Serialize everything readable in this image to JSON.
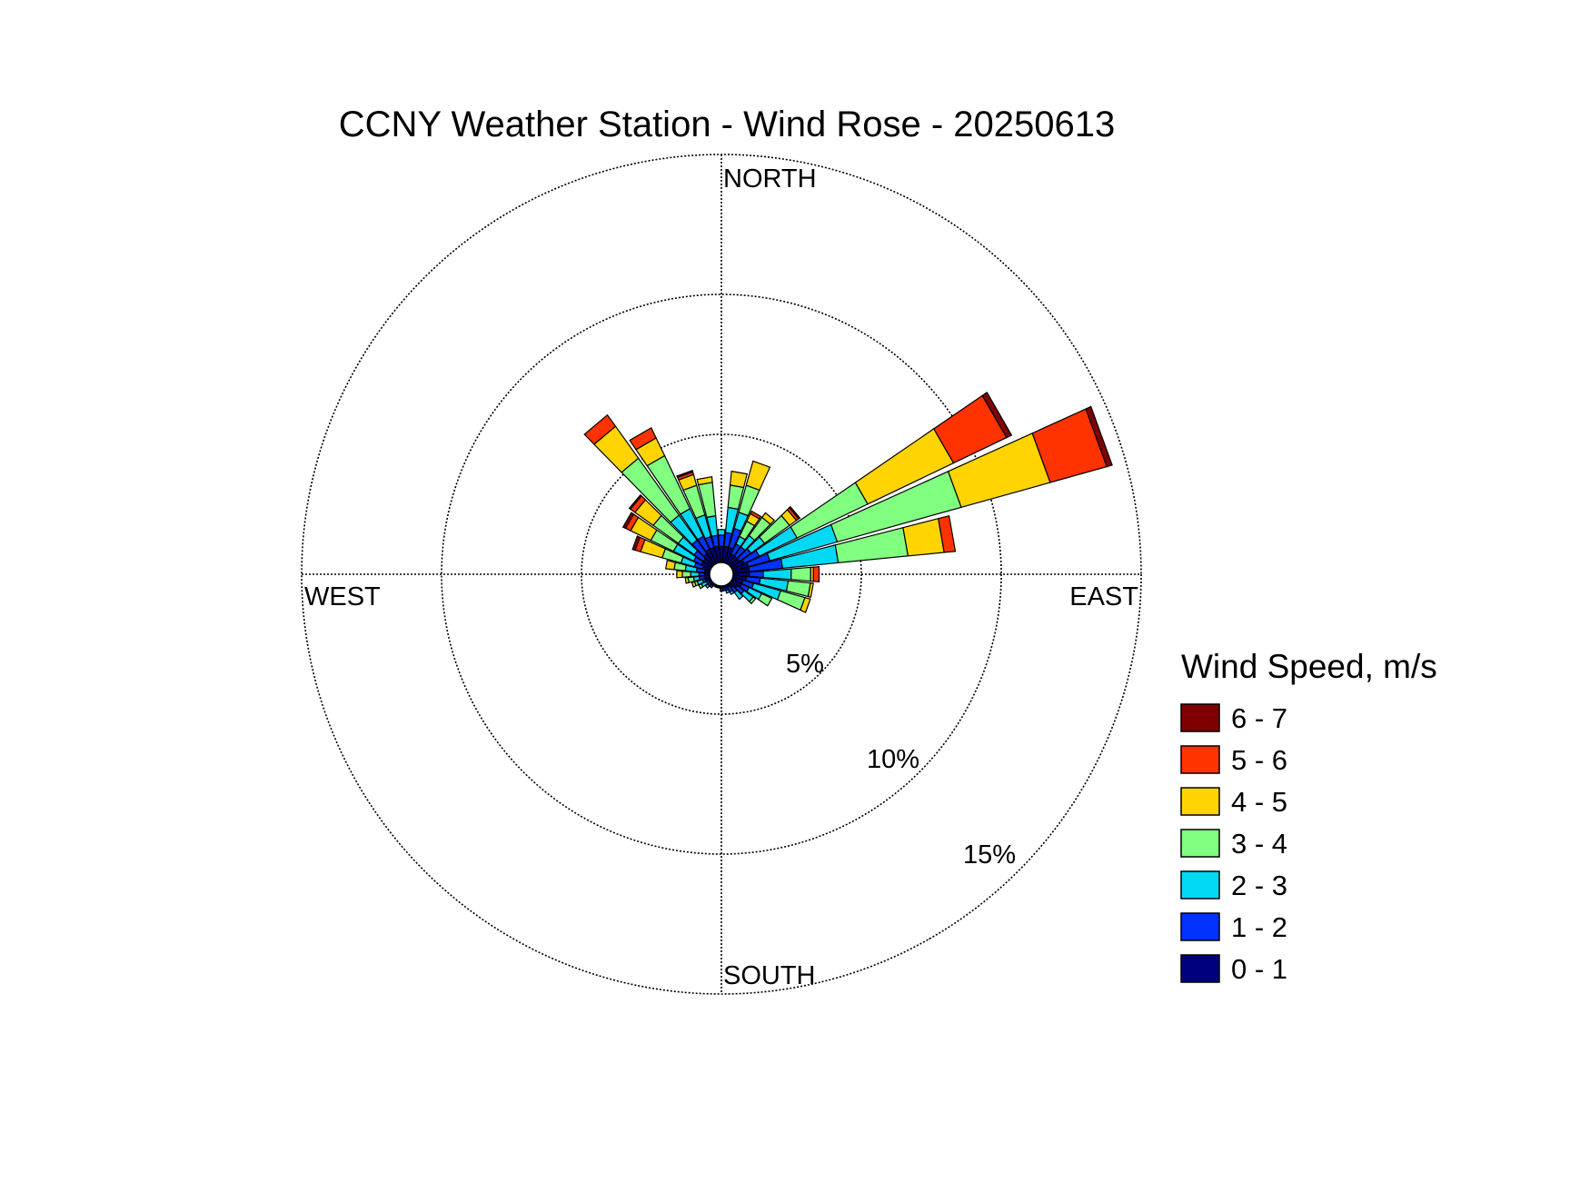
{
  "chart_data": {
    "type": "windrose",
    "title": "CCNY Weather Station - Wind Rose - 20250613",
    "direction_labels": {
      "north": "NORTH",
      "east": "EAST",
      "south": "SOUTH",
      "west": "WEST"
    },
    "radial_unit": "%",
    "radial_max": 15,
    "radial_rings": [
      5,
      10,
      15
    ],
    "ring_labels": [
      "5%",
      "10%",
      "15%"
    ],
    "grid": true,
    "legend": {
      "title": "Wind Speed, m/s",
      "position": "right",
      "bins": [
        {
          "label": "6 - 7",
          "color": "#7f0000"
        },
        {
          "label": "5 - 6",
          "color": "#ff3300"
        },
        {
          "label": "4 - 5",
          "color": "#ffd400"
        },
        {
          "label": "3 - 4",
          "color": "#80ff80"
        },
        {
          "label": "2 - 3",
          "color": "#00d8f4"
        },
        {
          "label": "1 - 2",
          "color": "#0033ff"
        },
        {
          "label": "0 - 1",
          "color": "#00007f"
        }
      ]
    },
    "speed_bins": [
      "0 - 1",
      "1 - 2",
      "2 - 3",
      "3 - 4",
      "4 - 5",
      "5 - 6",
      "6 - 7"
    ],
    "series": [
      {
        "direction": 0,
        "cumulative": [
          1.0,
          1.4,
          1.6,
          1.6,
          1.6,
          1.6,
          1.6
        ]
      },
      {
        "direction": 10,
        "cumulative": [
          1.0,
          1.5,
          2.4,
          3.2,
          3.7,
          3.7,
          3.7
        ]
      },
      {
        "direction": 20,
        "cumulative": [
          1.0,
          1.7,
          2.3,
          3.3,
          4.2,
          4.2,
          4.2
        ]
      },
      {
        "direction": 30,
        "cumulative": [
          0.8,
          1.2,
          1.5,
          2.1,
          2.4,
          2.5,
          2.5
        ]
      },
      {
        "direction": 40,
        "cumulative": [
          0.8,
          1.2,
          1.7,
          2.5,
          2.7,
          2.7,
          2.7
        ]
      },
      {
        "direction": 50,
        "cumulative": [
          0.8,
          1.3,
          1.9,
          3.0,
          3.3,
          3.4,
          3.45
        ]
      },
      {
        "direction": 60,
        "cumulative": [
          0.9,
          1.5,
          3.0,
          5.8,
          9.2,
          11.3,
          11.5
        ]
      },
      {
        "direction": 70,
        "cumulative": [
          1.0,
          1.8,
          4.3,
          8.9,
          12.2,
          14.3,
          14.5
        ]
      },
      {
        "direction": 80,
        "cumulative": [
          1.0,
          2.2,
          4.2,
          6.7,
          8.0,
          8.4,
          8.4
        ]
      },
      {
        "direction": 90,
        "cumulative": [
          1.0,
          1.5,
          2.5,
          3.2,
          3.3,
          3.5,
          3.5
        ]
      },
      {
        "direction": 100,
        "cumulative": [
          0.9,
          1.4,
          2.4,
          3.2,
          3.3,
          3.3,
          3.3
        ]
      },
      {
        "direction": 110,
        "cumulative": [
          0.8,
          1.2,
          2.2,
          3.1,
          3.3,
          3.3,
          3.3
        ]
      },
      {
        "direction": 120,
        "cumulative": [
          0.8,
          1.1,
          1.6,
          2.0,
          2.0,
          2.0,
          2.0
        ]
      },
      {
        "direction": 130,
        "cumulative": [
          0.7,
          1.0,
          1.4,
          1.5,
          1.5,
          1.5,
          1.5
        ]
      },
      {
        "direction": 140,
        "cumulative": [
          0.6,
          0.8,
          1.1,
          1.1,
          1.1,
          1.1,
          1.1
        ]
      },
      {
        "direction": 150,
        "cumulative": [
          0.5,
          0.7,
          0.8,
          0.8,
          0.8,
          0.8,
          0.8
        ]
      },
      {
        "direction": 160,
        "cumulative": [
          0.5,
          0.6,
          0.7,
          0.7,
          0.7,
          0.7,
          0.7
        ]
      },
      {
        "direction": 170,
        "cumulative": [
          0.5,
          0.6,
          0.6,
          0.6,
          0.6,
          0.6,
          0.6
        ]
      },
      {
        "direction": 180,
        "cumulative": [
          0.5,
          0.6,
          0.6,
          0.6,
          0.6,
          0.6,
          0.6
        ]
      },
      {
        "direction": 190,
        "cumulative": [
          0.5,
          0.5,
          0.5,
          0.5,
          0.5,
          0.5,
          0.5
        ]
      },
      {
        "direction": 200,
        "cumulative": [
          0.5,
          0.5,
          0.5,
          0.5,
          0.5,
          0.5,
          0.5
        ]
      },
      {
        "direction": 210,
        "cumulative": [
          0.5,
          0.5,
          0.5,
          0.5,
          0.5,
          0.5,
          0.5
        ]
      },
      {
        "direction": 220,
        "cumulative": [
          0.5,
          0.6,
          0.6,
          0.6,
          0.6,
          0.6,
          0.6
        ]
      },
      {
        "direction": 230,
        "cumulative": [
          0.5,
          0.6,
          0.7,
          0.7,
          0.7,
          0.7,
          0.7
        ]
      },
      {
        "direction": 240,
        "cumulative": [
          0.5,
          0.6,
          0.8,
          0.9,
          0.9,
          0.9,
          0.9
        ]
      },
      {
        "direction": 250,
        "cumulative": [
          0.6,
          0.7,
          0.9,
          1.0,
          1.1,
          1.1,
          1.1
        ]
      },
      {
        "direction": 260,
        "cumulative": [
          0.6,
          0.8,
          1.0,
          1.2,
          1.3,
          1.3,
          1.3
        ]
      },
      {
        "direction": 270,
        "cumulative": [
          0.6,
          0.8,
          1.1,
          1.4,
          1.6,
          1.6,
          1.6
        ]
      },
      {
        "direction": 280,
        "cumulative": [
          0.6,
          0.9,
          1.3,
          1.7,
          2.0,
          2.0,
          2.0
        ]
      },
      {
        "direction": 290,
        "cumulative": [
          0.7,
          1.0,
          1.5,
          2.2,
          3.0,
          3.2,
          3.3
        ]
      },
      {
        "direction": 300,
        "cumulative": [
          0.8,
          1.1,
          1.9,
          2.8,
          3.6,
          3.8,
          3.9
        ]
      },
      {
        "direction": 310,
        "cumulative": [
          0.8,
          1.2,
          1.9,
          3.0,
          3.8,
          4.0,
          4.05
        ]
      },
      {
        "direction": 320,
        "cumulative": [
          0.9,
          1.5,
          2.6,
          5.1,
          6.5,
          7.0,
          7.0
        ]
      },
      {
        "direction": 330,
        "cumulative": [
          1.0,
          1.5,
          2.6,
          4.7,
          5.4,
          5.8,
          5.8
        ]
      },
      {
        "direction": 340,
        "cumulative": [
          1.0,
          1.4,
          2.2,
          3.3,
          3.7,
          3.8,
          3.85
        ]
      },
      {
        "direction": 350,
        "cumulative": [
          1.0,
          1.4,
          2.1,
          3.3,
          3.5,
          3.5,
          3.5
        ]
      }
    ]
  }
}
